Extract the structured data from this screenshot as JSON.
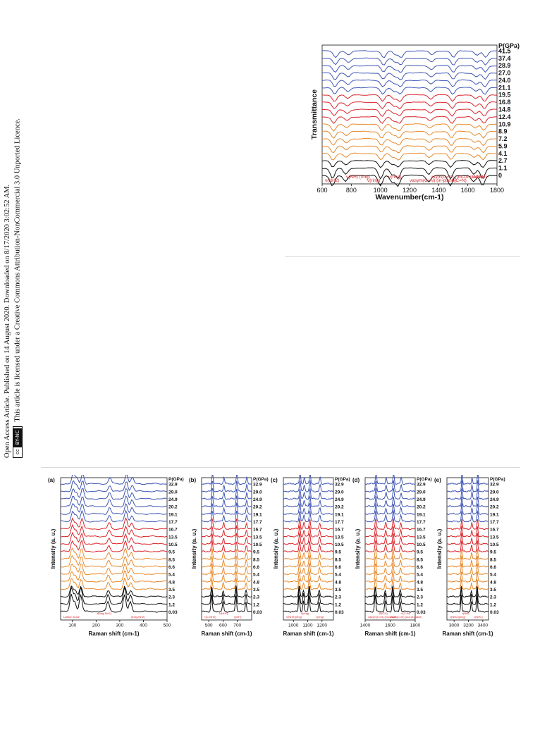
{
  "sidebar": {
    "line1": "Open Access Article. Published on 14 August 2020. Downloaded on 8/17/2020 3:02:52 AM.",
    "line2": "This article is licensed under a Creative Commons Attribution-NonCommercial 3.0 Unported Licence.",
    "badge_left": "cc",
    "badge_right": "BY-NC"
  },
  "chart_data": [
    {
      "type": "line",
      "panel": "",
      "xlabel": "Wavenumber(cm-1)",
      "ylabel": "Transmittance",
      "xlim": [
        600,
        1800
      ],
      "xticks": [
        600,
        800,
        1000,
        1200,
        1400,
        1600,
        1800
      ],
      "legend_title": "P(GPa)",
      "pressures": [
        "41.5",
        "37.4",
        "28.9",
        "27.0",
        "24.0",
        "21.1",
        "19.5",
        "16.8",
        "14.8",
        "12.4",
        "10.9",
        "8.9",
        "7.2",
        "5.9",
        "4.1",
        "2.7",
        "1.1",
        "0"
      ],
      "peaks": [
        670,
        760,
        1000,
        1080,
        1120,
        1330,
        1480,
        1640,
        1700
      ],
      "annotations": [
        "ν(NH2)",
        "γ(NH) (ring)",
        "ν(ring)",
        "ν(ring)",
        "νasym(C=N) (in-plane)",
        "νsym(C=N) (out-of-plane)",
        "ν(C=N)",
        "δ(N-H)"
      ],
      "colors": {
        "low": "#e8892d",
        "mid": "#d9262b",
        "high": "#3f55b5",
        "base": "#111111"
      }
    },
    {
      "type": "line",
      "panel": "(a)",
      "xlabel": "Raman shift (cm-1)",
      "ylabel": "Intensity (a. u.)",
      "xlim": [
        50,
        500
      ],
      "xticks": [
        100,
        200,
        300,
        400,
        500
      ],
      "legend_title": "P(GPa)",
      "pressures": [
        "32.9",
        "29.0",
        "24.9",
        "20.2",
        "19.1",
        "17.7",
        "16.7",
        "13.5",
        "10.5",
        "9.5",
        "8.5",
        "6.6",
        "5.4",
        "4.8",
        "3.5",
        "2.3",
        "1.2",
        "0.03"
      ],
      "peaks": [
        95,
        110,
        135,
        250,
        320,
        345
      ],
      "annotations": [
        "Lattice mode",
        "τ(ring-NH2)",
        "τ(ring-NH2)"
      ]
    },
    {
      "type": "line",
      "panel": "(b)",
      "xlabel": "Raman shift (cm-1)",
      "ylabel": "Intensity (a. u.)",
      "xlim": [
        450,
        800
      ],
      "xticks": [
        500,
        600,
        700
      ],
      "legend_title": "P(GPa)",
      "pressures": [
        "32.9",
        "29.0",
        "24.9",
        "20.2",
        "19.1",
        "17.7",
        "16.7",
        "13.5",
        "10.5",
        "9.5",
        "8.5",
        "6.6",
        "5.4",
        "4.8",
        "3.5",
        "2.3",
        "1.2",
        "0.03"
      ],
      "peaks": [
        520,
        600,
        690,
        760
      ],
      "annotations": [
        "τ(C-NH2)",
        "τ(NH2)",
        "γ(NH)"
      ]
    },
    {
      "type": "line",
      "panel": "(c)",
      "xlabel": "Raman shift (cm-1)",
      "ylabel": "Intensity (a. u.)",
      "xlim": [
        930,
        1280
      ],
      "xticks": [
        1000,
        1100,
        1200
      ],
      "legend_title": "P(GPa)",
      "pressures": [
        "32.9",
        "29.0",
        "24.9",
        "20.2",
        "19.1",
        "17.7",
        "16.7",
        "13.5",
        "10.5",
        "9.5",
        "8.5",
        "6.6",
        "5.4",
        "4.8",
        "3.5",
        "2.3",
        "1.2",
        "0.03"
      ],
      "peaks": [
        1040,
        1070,
        1110,
        1180
      ],
      "annotations": [
        "ν(NH2)(ring)",
        "ν(ring)",
        "ν(ring)"
      ]
    },
    {
      "type": "line",
      "panel": "(d)",
      "xlabel": "Raman shift (cm-1)",
      "ylabel": "Intensity (a. u.)",
      "xlim": [
        1400,
        1800
      ],
      "xticks": [
        1400,
        1600,
        1800
      ],
      "legend_title": "P(GPa)",
      "pressures": [
        "32.9",
        "29.0",
        "24.9",
        "20.2",
        "19.1",
        "17.7",
        "16.7",
        "13.5",
        "10.5",
        "9.5",
        "8.5",
        "6.6",
        "5.4",
        "4.8",
        "3.5",
        "2.3",
        "1.2",
        "0.03"
      ],
      "peaks": [
        1480,
        1560,
        1620,
        1680
      ],
      "annotations": [
        "νasym(C=N) (in-plane)",
        "δ(N-H)",
        "νsym(C=N) (out-of-plane)",
        "ν(C=N)"
      ]
    },
    {
      "type": "line",
      "panel": "(e)",
      "xlabel": "Raman shift (cm-1)",
      "ylabel": "Intensity (a. u.)",
      "xlim": [
        2900,
        3480
      ],
      "xticks": [
        3000,
        3200,
        3400
      ],
      "legend_title": "P(GPa)",
      "pressures": [
        "32.9",
        "29.0",
        "24.9",
        "20.2",
        "19.1",
        "17.7",
        "16.7",
        "13.5",
        "10.5",
        "9.5",
        "8.5",
        "6.6",
        "5.4",
        "4.8",
        "3.5",
        "2.3",
        "1.2",
        "0.03"
      ],
      "peaks": [
        3100,
        3240,
        3320
      ],
      "annotations": [
        "ν(NH2)(ring)",
        "ν(NH)",
        "ν(NH2)"
      ]
    }
  ]
}
